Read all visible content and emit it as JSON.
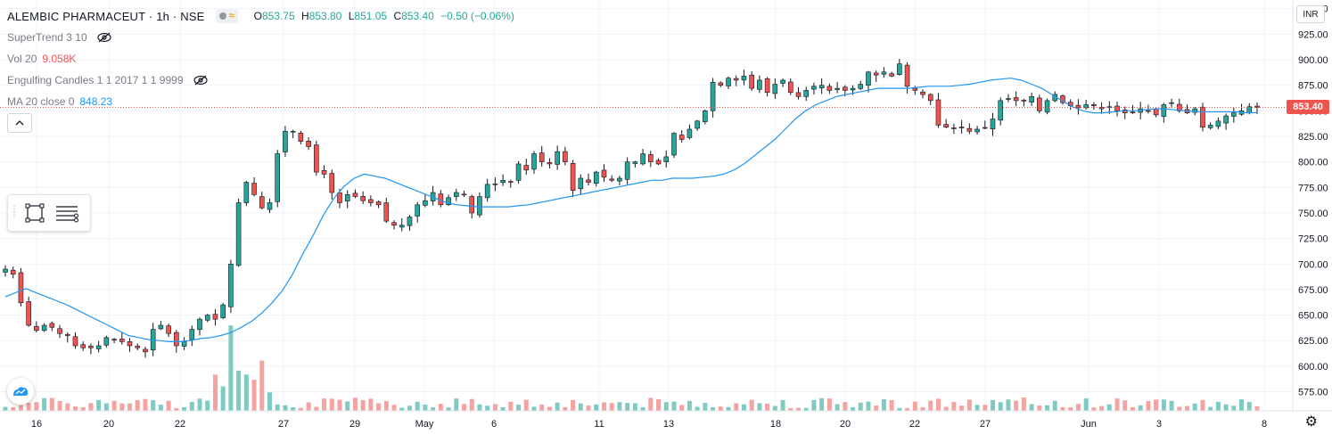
{
  "symbol": {
    "name": "ALEMBIC PHARMACEUT",
    "interval": "1h",
    "exchange": "NSE",
    "title": "ALEMBIC PHARMACEUT · 1h · NSE",
    "ohlc": {
      "o_label": "O",
      "o": "853.75",
      "h_label": "H",
      "h": "853.80",
      "l_label": "L",
      "l": "851.05",
      "c_label": "C",
      "c": "853.40",
      "change": "−0.50 (−0.06%)"
    },
    "chip_icon": "wave-icon"
  },
  "indicators": [
    {
      "name": "SuperTrend 3 10",
      "value": "",
      "icon": "eye-off-icon"
    },
    {
      "name": "Vol 20",
      "value": "9.058K",
      "value_color": "#ef5350"
    },
    {
      "name": "Engulfing Candles 1 1 2017 1 1 9999",
      "value": "",
      "icon": "eye-off-icon"
    },
    {
      "name": "MA 20 close 0",
      "value": "848.23",
      "value_color": "#2196f3"
    }
  ],
  "price_axis": {
    "currency": "INR",
    "last_price": "853.40",
    "last_price_color": "#ef5350",
    "ticks": [
      "950.00",
      "925.00",
      "900.00",
      "875.00",
      "850.00",
      "825.00",
      "800.00",
      "775.00",
      "750.00",
      "725.00",
      "700.00",
      "675.00",
      "650.00",
      "625.00",
      "600.00",
      "575.00"
    ]
  },
  "time_axis": {
    "ticks": [
      "16",
      "20",
      "22",
      "27",
      "29",
      "May",
      "6",
      "11",
      "13",
      "18",
      "20",
      "22",
      "27",
      "Jun",
      "3",
      "8"
    ]
  },
  "toolbar": {
    "tools": [
      "rectangle-tool-icon",
      "object-tree-icon"
    ]
  },
  "settings_icon": "gear-icon",
  "logo_icon": "tradingview-logo-icon",
  "colors": {
    "up": "#26a69a",
    "down": "#ef5350",
    "ma": "#2196f3",
    "vol_up": "#7fcbc4",
    "vol_down": "#f4a3a1"
  },
  "chart_data": {
    "type": "candlestick",
    "title": "ALEMBIC PHARMACEUT · 1h · NSE",
    "ylim": [
      565,
      955
    ],
    "grid": true,
    "x_ticks": [
      "16",
      "20",
      "22",
      "27",
      "29",
      "May",
      "6",
      "11",
      "13",
      "18",
      "20",
      "22",
      "27",
      "Jun",
      "3",
      "8"
    ],
    "y_ticks": [
      575,
      600,
      625,
      650,
      675,
      700,
      725,
      750,
      775,
      800,
      825,
      850,
      875,
      900,
      925,
      950
    ],
    "price_series": [
      {
        "name": "Close",
        "values": [
          695,
          690,
          662,
          640,
          635,
          640,
          638,
          632,
          630,
          620,
          618,
          618,
          620,
          628,
          626,
          624,
          620,
          618,
          614,
          636,
          640,
          632,
          620,
          624,
          636,
          646,
          650,
          646,
          660,
          700,
          760,
          780,
          768,
          755,
          760,
          808,
          830,
          830,
          820,
          815,
          790,
          788,
          770,
          760,
          768,
          766,
          762,
          760,
          758,
          742,
          738,
          738,
          746,
          758,
          762,
          770,
          758,
          765,
          770,
          768,
          750,
          766,
          778,
          778,
          782,
          780,
          798,
          792,
          808,
          800,
          798,
          810,
          800,
          772,
          784,
          780,
          790,
          785,
          782,
          784,
          800,
          800,
          808,
          800,
          798,
          805,
          828,
          822,
          832,
          840,
          850,
          878,
          875,
          882,
          880,
          884,
          872,
          880,
          868,
          876,
          880,
          868,
          864,
          870,
          874,
          875,
          870,
          872,
          870,
          872,
          876,
          888,
          885,
          888,
          884,
          896,
          874,
          870,
          866,
          860,
          836,
          834,
          833,
          834,
          830,
          832,
          833,
          842,
          860,
          862,
          860,
          860,
          864,
          850,
          860,
          866,
          858,
          855,
          853,
          856,
          855,
          852,
          854,
          850,
          848,
          848,
          852,
          850,
          846,
          856,
          858,
          850,
          848,
          852,
          834,
          836,
          840,
          845,
          848,
          850,
          854,
          853.4
        ]
      },
      {
        "name": "MA 20 close 0",
        "values": [
          668,
          672,
          676,
          672,
          668,
          664,
          660,
          655,
          650,
          645,
          640,
          635,
          630,
          628,
          626,
          625,
          624,
          624,
          625,
          627,
          628,
          630,
          633,
          638,
          644,
          652,
          662,
          674,
          690,
          710,
          728,
          748,
          764,
          776,
          784,
          788,
          786,
          784,
          780,
          776,
          772,
          768,
          764,
          760,
          758,
          757,
          756,
          756,
          756,
          756,
          757,
          758,
          760,
          762,
          764,
          766,
          768,
          770,
          772,
          774,
          776,
          778,
          780,
          782,
          782,
          784,
          784,
          784,
          785,
          786,
          788,
          792,
          798,
          806,
          814,
          822,
          832,
          842,
          850,
          856,
          860,
          864,
          866,
          868,
          870,
          872,
          872,
          872,
          872,
          873,
          874,
          874,
          874,
          875,
          876,
          878,
          880,
          881,
          882,
          880,
          876,
          872,
          866,
          860,
          854,
          850,
          848,
          848,
          849,
          850,
          850,
          851,
          852,
          852,
          851,
          850,
          849,
          849,
          849,
          849,
          849,
          848,
          848.23
        ]
      }
    ]
  }
}
